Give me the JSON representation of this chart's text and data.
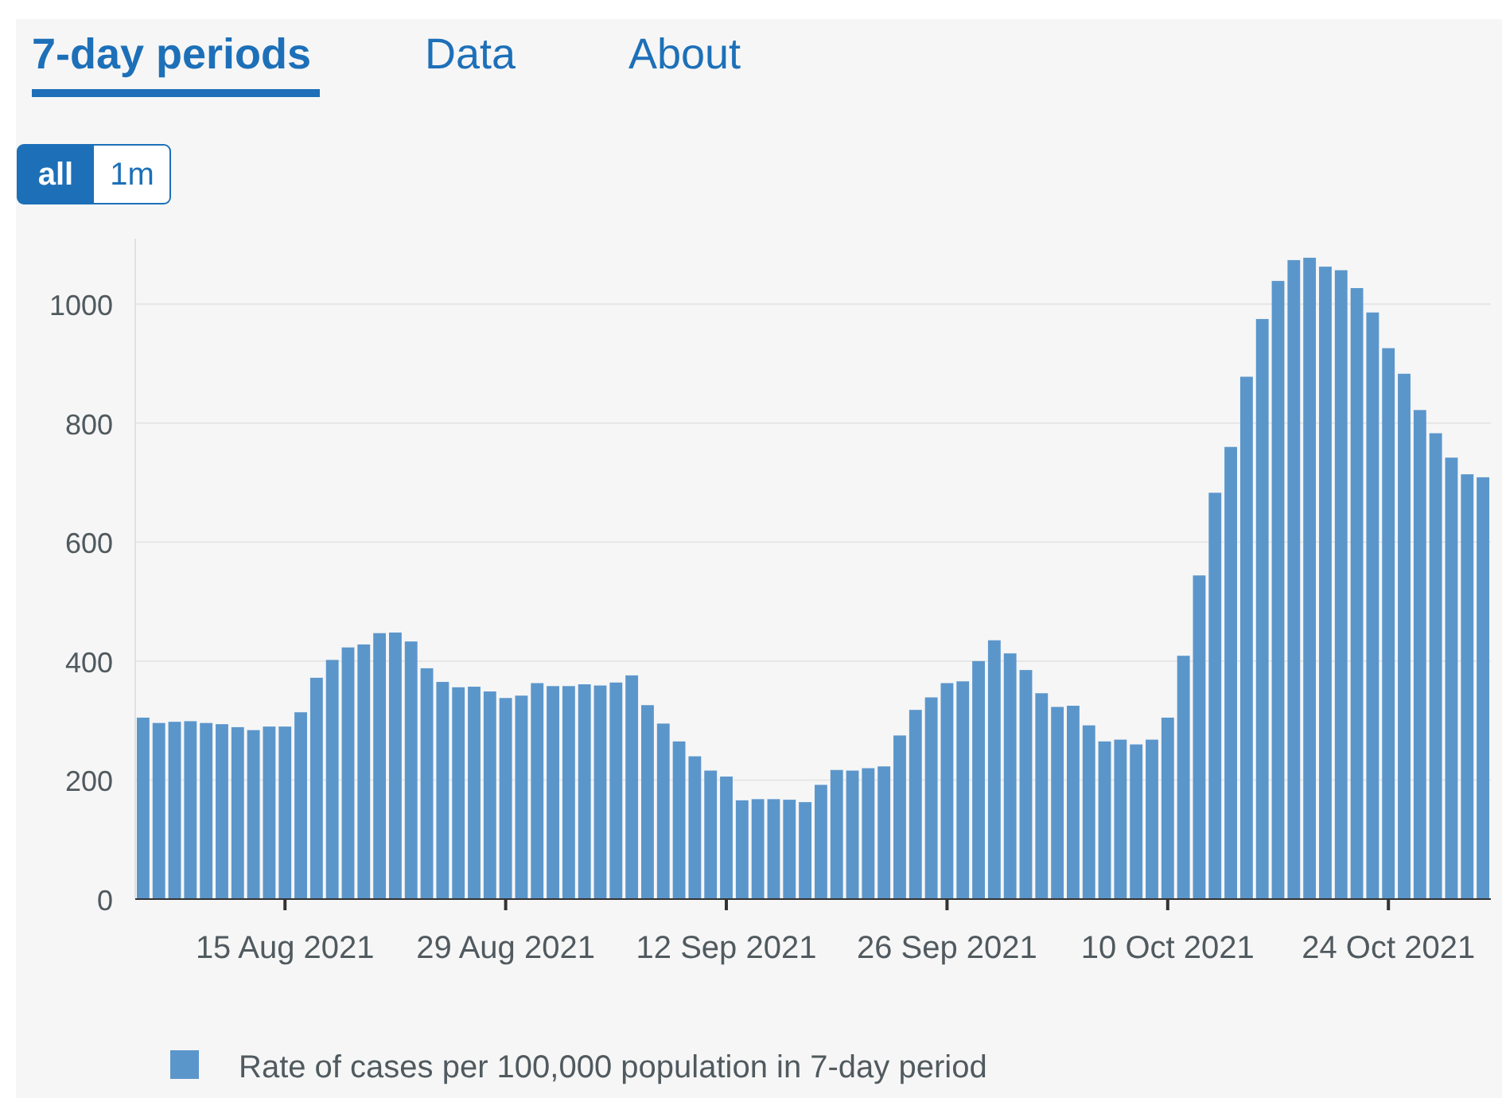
{
  "chart_data": {
    "type": "bar",
    "annotations": [
      "7-day periods",
      "Data",
      "About",
      "all",
      "1m"
    ],
    "x": [
      "2021-08-06",
      "2021-08-07",
      "2021-08-08",
      "2021-08-09",
      "2021-08-10",
      "2021-08-11",
      "2021-08-12",
      "2021-08-13",
      "2021-08-14",
      "2021-08-15",
      "2021-08-16",
      "2021-08-17",
      "2021-08-18",
      "2021-08-19",
      "2021-08-20",
      "2021-08-21",
      "2021-08-22",
      "2021-08-23",
      "2021-08-24",
      "2021-08-25",
      "2021-08-26",
      "2021-08-27",
      "2021-08-28",
      "2021-08-29",
      "2021-08-30",
      "2021-08-31",
      "2021-09-01",
      "2021-09-02",
      "2021-09-03",
      "2021-09-04",
      "2021-09-05",
      "2021-09-06",
      "2021-09-07",
      "2021-09-08",
      "2021-09-09",
      "2021-09-10",
      "2021-09-11",
      "2021-09-12",
      "2021-09-13",
      "2021-09-14",
      "2021-09-15",
      "2021-09-16",
      "2021-09-17",
      "2021-09-18",
      "2021-09-19",
      "2021-09-20",
      "2021-09-21",
      "2021-09-22",
      "2021-09-23",
      "2021-09-24",
      "2021-09-25",
      "2021-09-26",
      "2021-09-27",
      "2021-09-28",
      "2021-09-29",
      "2021-09-30",
      "2021-10-01",
      "2021-10-02",
      "2021-10-03",
      "2021-10-04",
      "2021-10-05",
      "2021-10-06",
      "2021-10-07",
      "2021-10-08",
      "2021-10-09",
      "2021-10-10",
      "2021-10-11",
      "2021-10-12",
      "2021-10-13",
      "2021-10-14",
      "2021-10-15",
      "2021-10-16",
      "2021-10-17",
      "2021-10-18",
      "2021-10-19",
      "2021-10-20",
      "2021-10-21",
      "2021-10-22",
      "2021-10-23",
      "2021-10-24",
      "2021-10-25",
      "2021-10-26",
      "2021-10-27",
      "2021-10-28",
      "2021-10-29",
      "2021-10-30"
    ],
    "series": [
      {
        "name": "Rate of cases per 100,000 population in 7-day period",
        "color": "#5b96cb",
        "values": [
          305,
          296,
          298,
          299,
          296,
          294,
          289,
          284,
          290,
          290,
          314,
          372,
          402,
          423,
          428,
          447,
          448,
          433,
          388,
          365,
          356,
          357,
          349,
          338,
          342,
          363,
          358,
          358,
          361,
          359,
          364,
          376,
          326,
          295,
          265,
          240,
          216,
          206,
          166,
          168,
          168,
          167,
          163,
          192,
          217,
          216,
          220,
          223,
          275,
          318,
          339,
          363,
          366,
          400,
          435,
          413,
          385,
          346,
          323,
          325,
          292,
          265,
          268,
          260,
          268,
          305,
          409,
          544,
          683,
          760,
          878,
          975,
          1039,
          1074,
          1078,
          1063,
          1057,
          1027,
          986,
          926,
          883,
          822,
          783,
          742,
          714,
          709
        ]
      }
    ],
    "xlim": [
      "2021-08-05T12:00",
      "2021-10-30T12:00"
    ],
    "xticks": [
      {
        "value": "2021-08-15",
        "label": "15 Aug 2021"
      },
      {
        "value": "2021-08-29",
        "label": "29 Aug 2021"
      },
      {
        "value": "2021-09-12",
        "label": "12 Sep 2021"
      },
      {
        "value": "2021-09-26",
        "label": "26 Sep 2021"
      },
      {
        "value": "2021-10-10",
        "label": "10 Oct 2021"
      },
      {
        "value": "2021-10-24",
        "label": "24 Oct 2021"
      }
    ],
    "ylim": [
      0,
      1110
    ],
    "yticks": [
      0,
      200,
      400,
      600,
      800,
      1000
    ],
    "grid": "y",
    "legend": "bottom"
  }
}
